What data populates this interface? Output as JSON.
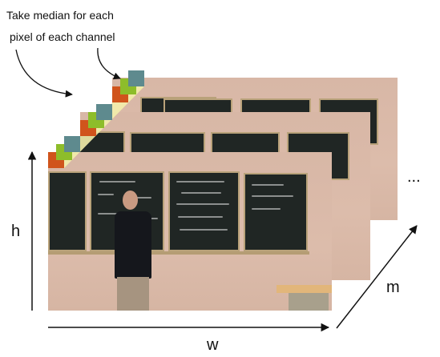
{
  "caption": {
    "line1": "Take median for each",
    "line2": "pixel of each channel"
  },
  "axes": {
    "height_label": "h",
    "width_label": "w",
    "depth_label": "m",
    "ellipsis": "..."
  },
  "channel_colors": {
    "red": "#d0541c",
    "green": "#8dbd2a",
    "blue": "#5e8a8e",
    "fill": "#f3eeab"
  },
  "arrow_color": "#111111"
}
